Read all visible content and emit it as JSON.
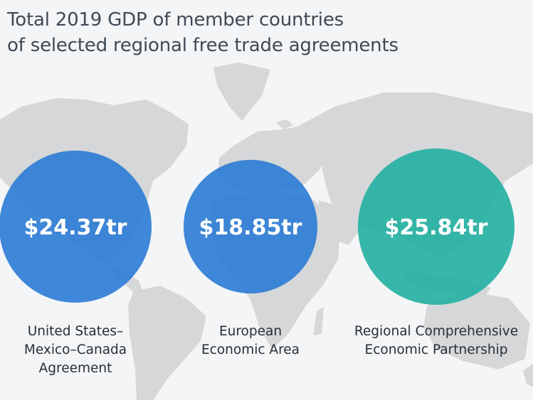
{
  "header": {
    "subtitle_lines": [
      "Total 2019 GDP of member countries",
      "of selected regional free trade agreements"
    ]
  },
  "colors": {
    "background": "#f3f5f7",
    "map_land": "#d5d7d9",
    "usmca": "#2b7bd4",
    "eea": "#2b7bd4",
    "rcep": "#22b0a0"
  },
  "chart_data": {
    "type": "bubble",
    "unit": "trillion USD",
    "items": [
      {
        "key": "usmca",
        "value": 24.37,
        "value_label": "$24.37tr",
        "caption_lines": [
          "United States–",
          "Mexico–Canada",
          "Agreement"
        ]
      },
      {
        "key": "eea",
        "value": 18.85,
        "value_label": "$18.85tr",
        "caption_lines": [
          "European",
          "Economic Area"
        ]
      },
      {
        "key": "rcep",
        "value": 25.84,
        "value_label": "$25.84tr",
        "caption_lines": [
          "Regional Comprehensive",
          "Economic Partnership"
        ]
      }
    ]
  }
}
